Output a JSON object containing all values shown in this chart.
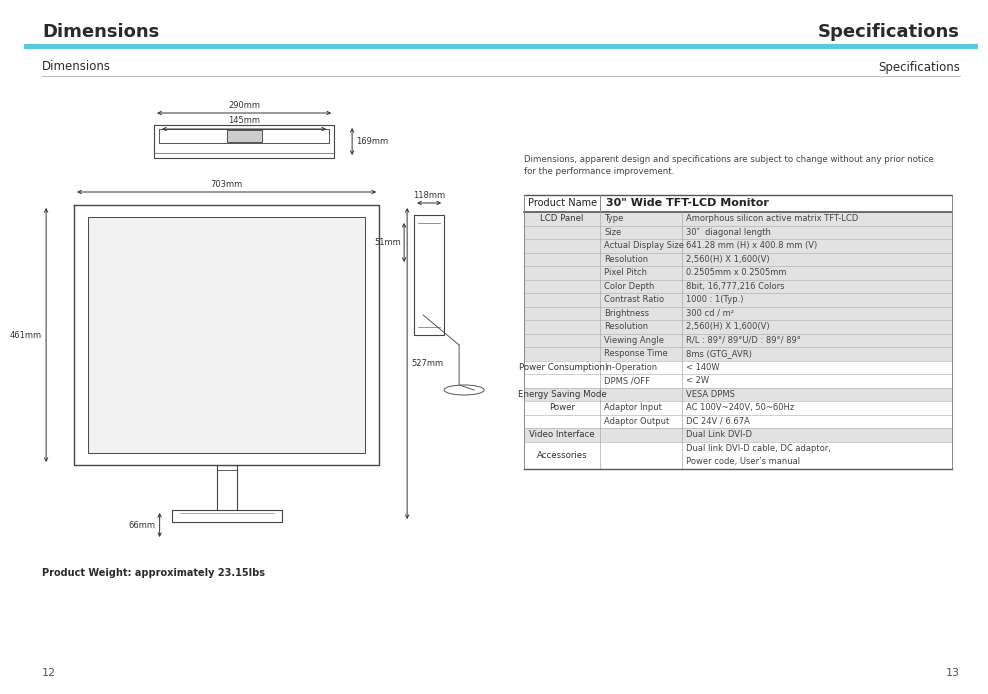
{
  "title_left": "Dimensions",
  "title_right": "Specifications",
  "subtitle_left": "Dimensions",
  "subtitle_right": "Specifications",
  "page_left": "12",
  "page_right": "13",
  "disclaimer": "Dimensions, apparent design and specifications are subject to change without any prior notice\nfor the performance improvement.",
  "weight_note": "Product Weight: approximately 23.15lbs",
  "cyan_color": "#5bc8de",
  "dark_text": "#2a2a2a",
  "gray_text": "#555555",
  "table_col1_header": "Product Name",
  "table_col2_header": "30\" Wide TFT-LCD Monitor",
  "table_rows": [
    {
      "col1": "LCD Panel",
      "col2": "Type",
      "col3": "Amorphous silicon active matrix TFT-LCD",
      "shaded": true
    },
    {
      "col1": "",
      "col2": "Size",
      "col3": "30″  diagonal length",
      "shaded": true
    },
    {
      "col1": "",
      "col2": "Actual Display Size",
      "col3": "641.28 mm (H) x 400.8 mm (V)",
      "shaded": true
    },
    {
      "col1": "",
      "col2": "Resolution",
      "col3": "2,560(H) X 1,600(V)",
      "shaded": true
    },
    {
      "col1": "",
      "col2": "Pixel Pitch",
      "col3": "0.2505mm x 0.2505mm",
      "shaded": true
    },
    {
      "col1": "",
      "col2": "Color Depth",
      "col3": "8bit, 16,777,216 Colors",
      "shaded": true
    },
    {
      "col1": "",
      "col2": "Contrast Ratio",
      "col3": "1000 : 1(Typ.)",
      "shaded": true
    },
    {
      "col1": "",
      "col2": "Brightness",
      "col3": "300 cd / m²",
      "shaded": true
    },
    {
      "col1": "",
      "col2": "Resolution",
      "col3": "2,560(H) X 1,600(V)",
      "shaded": true
    },
    {
      "col1": "",
      "col2": "Viewing Angle",
      "col3": "R/L : 89°/ 89°U/D : 89°/ 89°",
      "shaded": true
    },
    {
      "col1": "",
      "col2": "Response Time",
      "col3": "8ms (GTG_AVR)",
      "shaded": true
    },
    {
      "col1": "Power Consumption",
      "col2": "In-Operation",
      "col3": "< 140W",
      "shaded": false
    },
    {
      "col1": "",
      "col2": "DPMS /OFF",
      "col3": "< 2W",
      "shaded": false
    },
    {
      "col1": "Energy Saving Mode",
      "col2": "",
      "col3": "VESA DPMS",
      "shaded": true
    },
    {
      "col1": "Power",
      "col2": "Adaptor Input",
      "col3": "AC 100V~240V, 50~60Hz",
      "shaded": false
    },
    {
      "col1": "",
      "col2": "Adaptor Output",
      "col3": "DC 24V / 6.67A",
      "shaded": false
    },
    {
      "col1": "Video Interface",
      "col2": "",
      "col3": "Dual Link DVI-D",
      "shaded": true
    },
    {
      "col1": "Accessories",
      "col2": "",
      "col3": "Dual link DVI-D cable, DC adaptor,\nPower code, User’s manual",
      "shaded": false
    }
  ],
  "monitor_dims": {
    "top_290": "290mm",
    "top_145": "145mm",
    "side_169": "169mm",
    "side_118": "118mm",
    "side_51": "51mm",
    "width_703": "703mm",
    "height_461": "461mm",
    "height_527": "527mm",
    "bottom_66": "66mm"
  }
}
